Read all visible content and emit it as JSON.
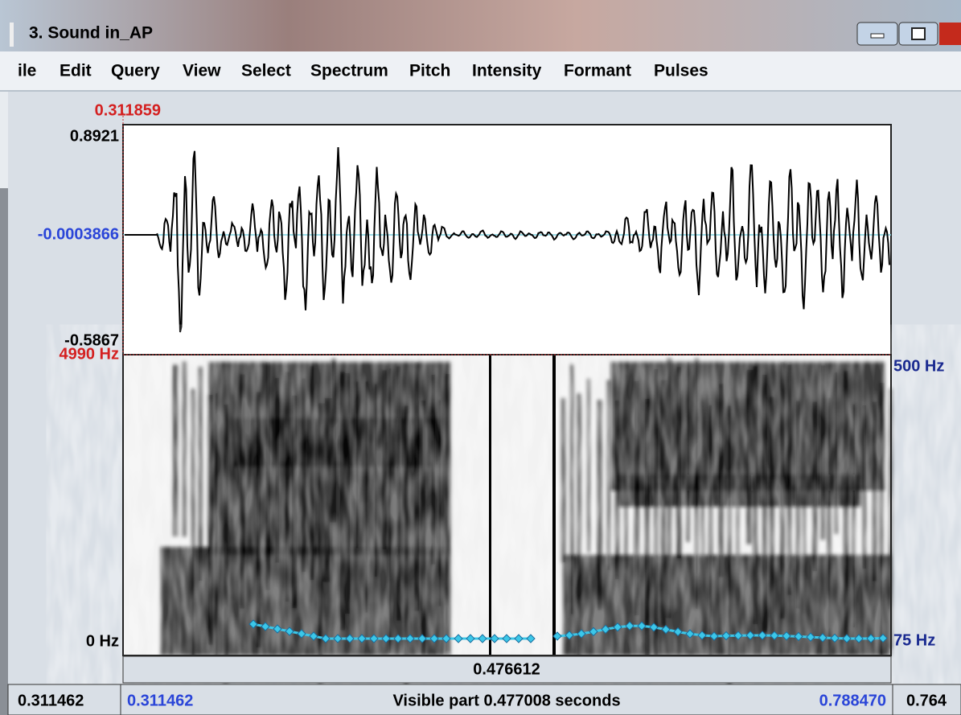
{
  "window": {
    "title": "3. Sound in_AP",
    "menu": [
      "ile",
      "Edit",
      "Query",
      "View",
      "Select",
      "Spectrum",
      "Pitch",
      "Intensity",
      "Formant",
      "Pulses"
    ]
  },
  "waveform": {
    "cursor_time": "0.311859",
    "max": "0.8921",
    "cursor_value": "-0.0003866",
    "min": "-0.5867"
  },
  "spectrogram": {
    "freq_max": "4990 Hz",
    "freq_min": "0 Hz",
    "pitch_max": "500 Hz",
    "pitch_min": "75 Hz"
  },
  "time_bar": {
    "selection_duration": "0.476612",
    "left_outside": "0.311462",
    "visible_start": "0.311462",
    "visible_part": "Visible part 0.477008 seconds",
    "visible_end": "0.788470",
    "right_outside": "0.764"
  }
}
